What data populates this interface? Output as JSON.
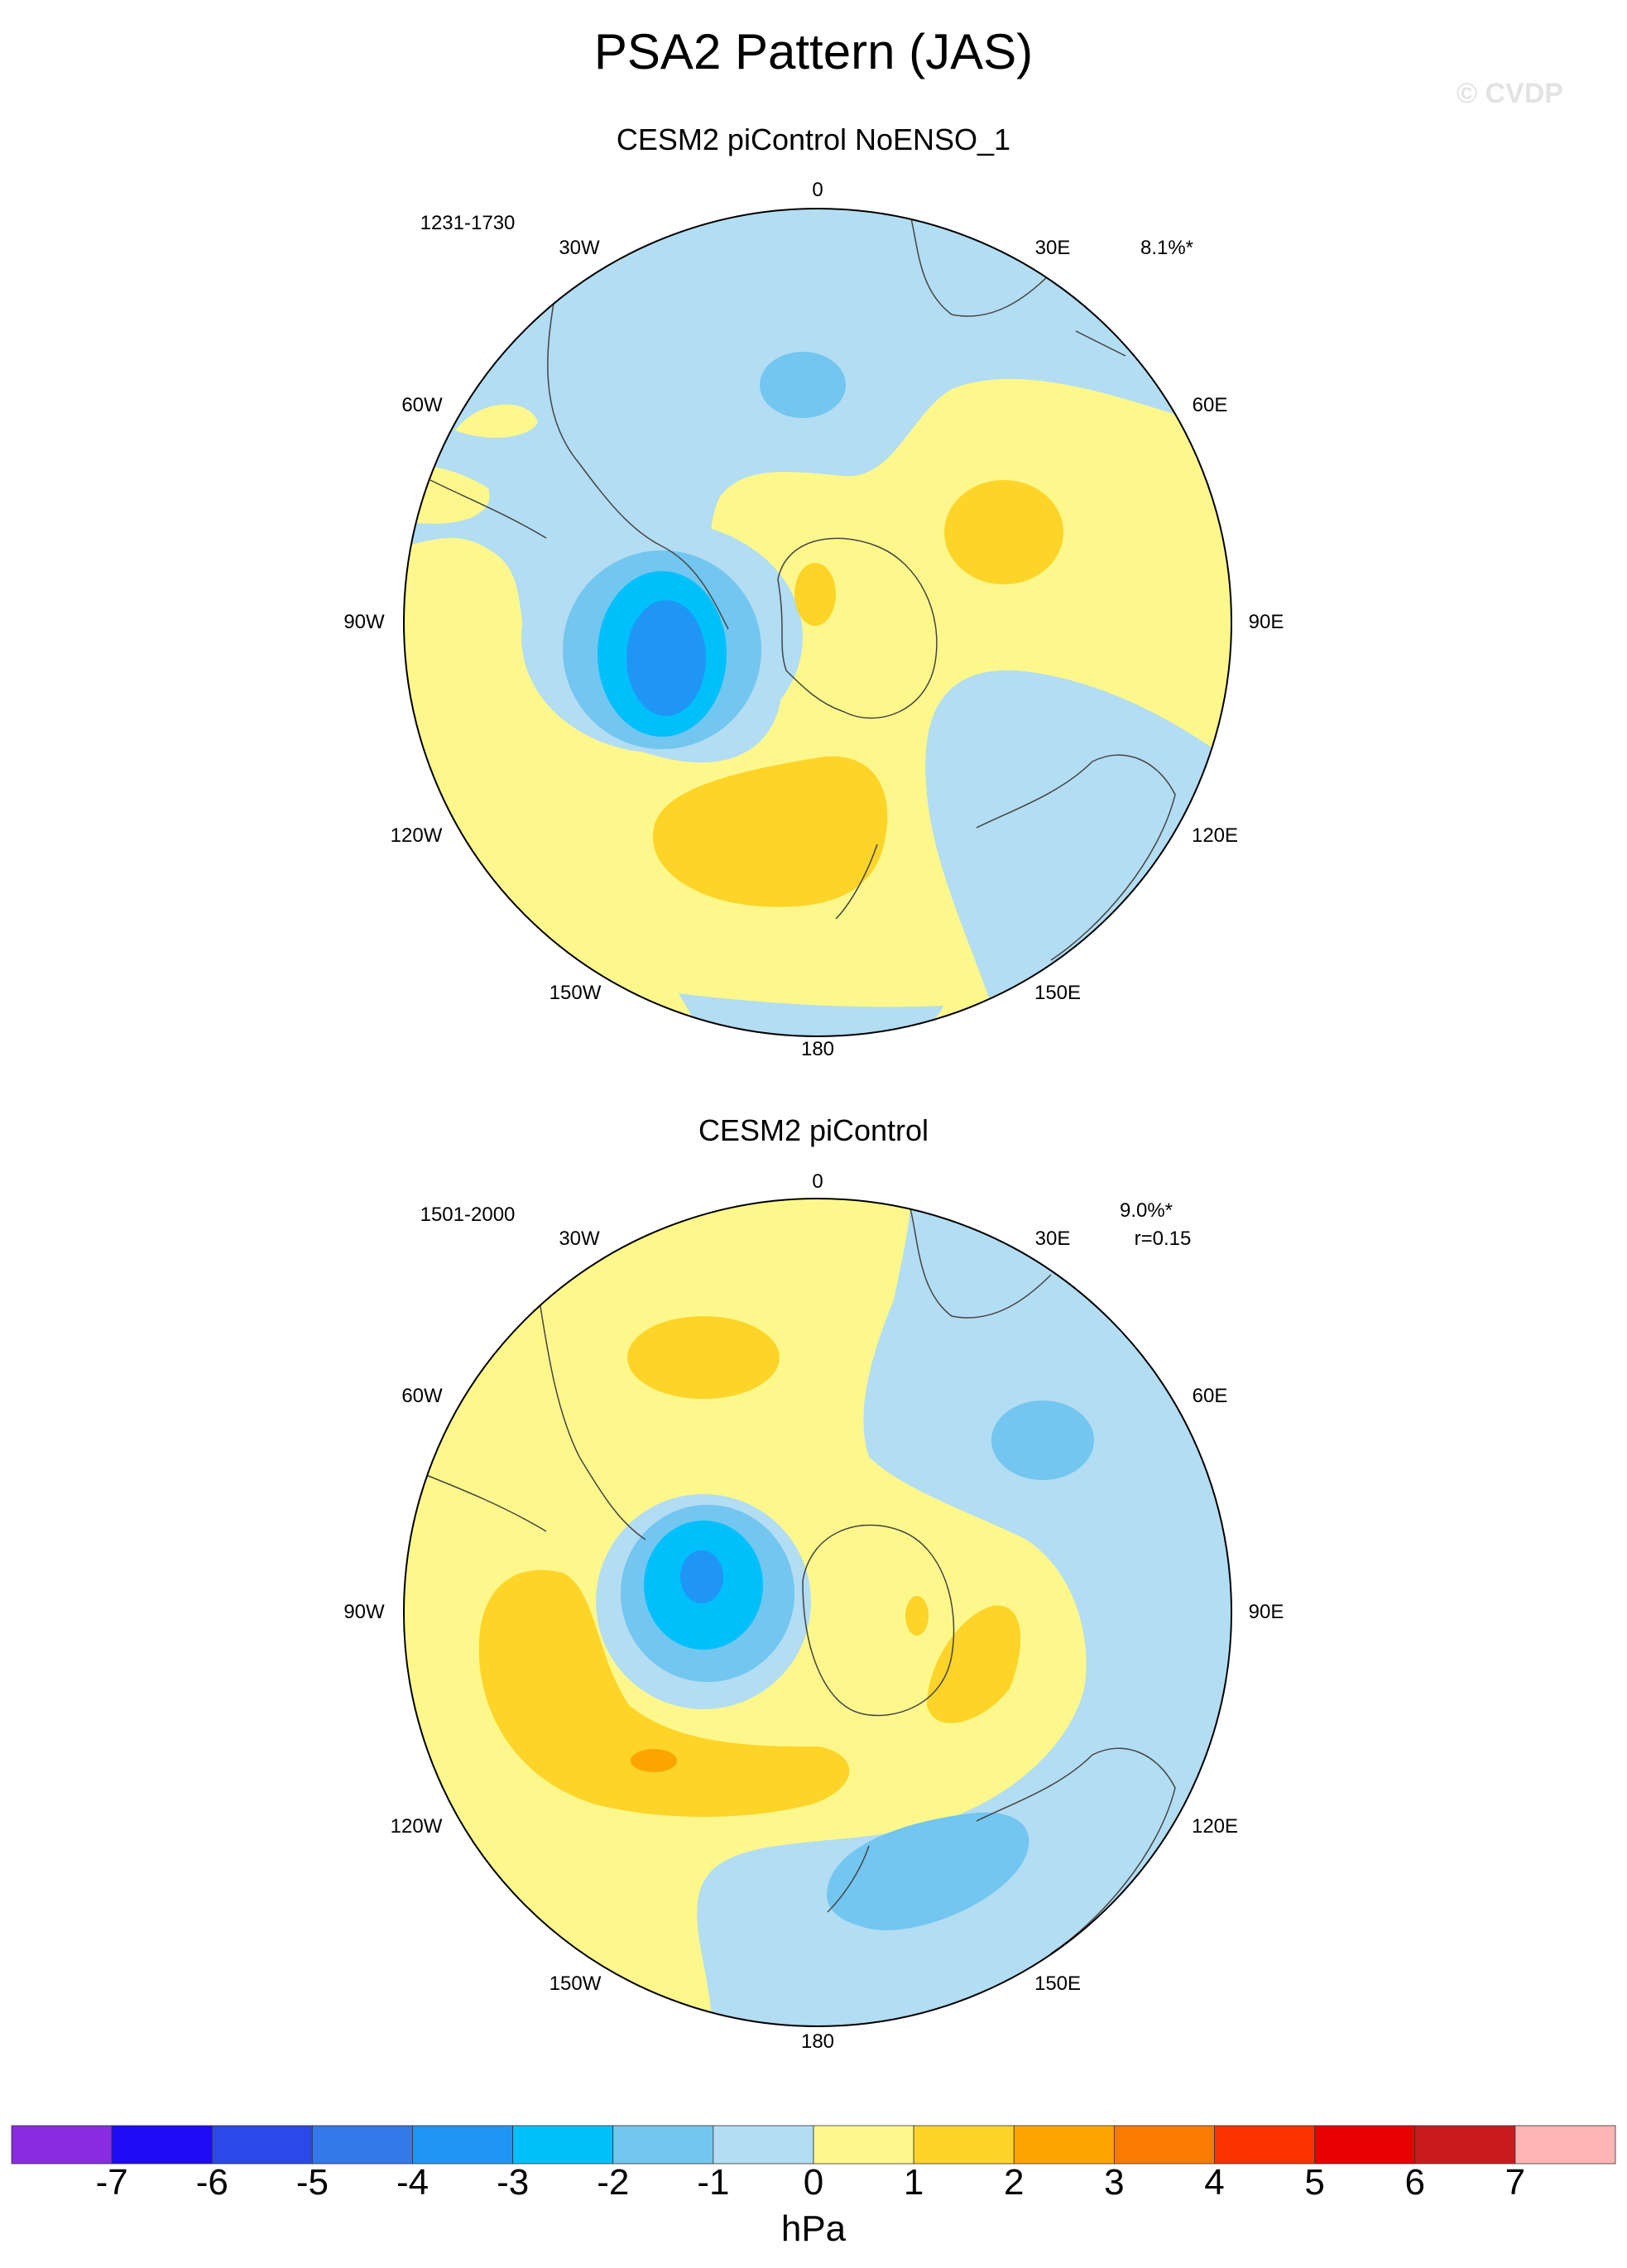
{
  "title": "PSA2 Pattern (JAS)",
  "watermark": "© CVDP",
  "panels": [
    {
      "title": "CESM2 piControl NoENSO_1",
      "years": "1231-1730",
      "pct": "8.1%*",
      "corr": ""
    },
    {
      "title": "CESM2 piControl",
      "years": "1501-2000",
      "pct": "9.0%*",
      "corr": "r=0.15"
    }
  ],
  "longitude_labels": [
    "0",
    "30E",
    "60E",
    "90E",
    "120E",
    "150E",
    "180",
    "150W",
    "120W",
    "90W",
    "60W",
    "30W"
  ],
  "colorbar": {
    "units": "hPa",
    "labels": [
      "-7",
      "-6",
      "-5",
      "-4",
      "-3",
      "-2",
      "-1",
      "0",
      "1",
      "2",
      "3",
      "4",
      "5",
      "6",
      "7"
    ],
    "colors": [
      "#8a2be2",
      "#1f0af5",
      "#2b48e8",
      "#3478ea",
      "#1f96f5",
      "#00c0fc",
      "#72c6f0",
      "#b3ddf2",
      "#fef88c",
      "#fdd427",
      "#fca500",
      "#fb7a00",
      "#fb3300",
      "#e80000",
      "#cb1b1e",
      "#fdb4b4"
    ]
  }
}
